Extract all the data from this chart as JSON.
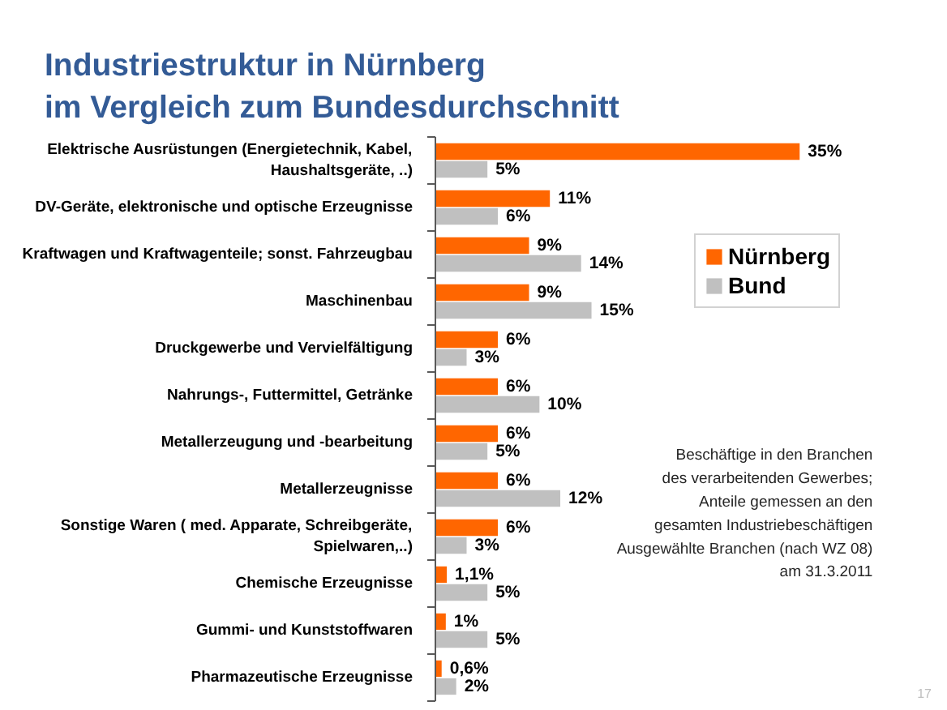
{
  "chart_data": {
    "type": "bar",
    "orientation": "horizontal",
    "title": "Industriestruktur in Nürnberg\nim Vergleich zum Bundesdurchschnitt",
    "categories": [
      "Elektrische Ausrüstungen (Energietechnik, Kabel,\nHaushaltsgeräte, ..)",
      "DV-Geräte, elektronische und optische Erzeugnisse",
      "Kraftwagen und Kraftwagenteile; sonst. Fahrzeugbau",
      "Maschinenbau",
      "Druckgewerbe und Vervielfältigung",
      "Nahrungs-, Futtermittel, Getränke",
      "Metallerzeugung und -bearbeitung",
      "Metallerzeugnisse",
      "Sonstige Waren ( med. Apparate, Schreibgeräte,\nSpielwaren,..)",
      "Chemische Erzeugnisse",
      "Gummi- und Kunststoffwaren",
      "Pharmazeutische Erzeugnisse"
    ],
    "series": [
      {
        "name": "Nürnberg",
        "color": "#ff6600",
        "values": [
          35,
          11,
          9,
          9,
          6,
          6,
          6,
          6,
          6,
          1.1,
          1,
          0.6
        ],
        "value_labels": [
          "35%",
          "11%",
          "9%",
          "9%",
          "6%",
          "6%",
          "6%",
          "6%",
          "6%",
          "1,1%",
          "1%",
          "0,6%"
        ]
      },
      {
        "name": "Bund",
        "color": "#c0c0c0",
        "values": [
          5,
          6,
          14,
          15,
          3,
          10,
          5,
          12,
          3,
          5,
          5,
          2
        ],
        "value_labels": [
          "5%",
          "6%",
          "14%",
          "15%",
          "3%",
          "10%",
          "5%",
          "12%",
          "3%",
          "5%",
          "5%",
          "2%"
        ]
      }
    ],
    "legend": "top right",
    "tick_labels": "y",
    "annotations": [
      "Beschäftige in den Branchen\ndes verarbeitenden Gewerbes;\nAnteile gemessen an den\ngesamten Industriebeschäftigen\nAusgewählte Branchen (nach WZ 08)\nam 31.3.2011",
      "17"
    ]
  }
}
